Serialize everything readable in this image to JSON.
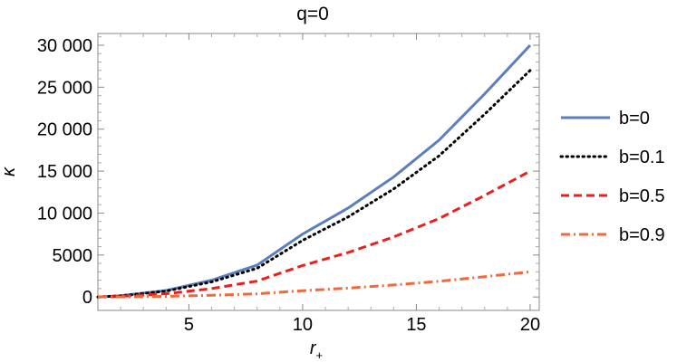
{
  "chart_data": {
    "type": "line",
    "title": "q=0",
    "xlabel": "r",
    "xlabel_subscript": "+",
    "ylabel": "κ",
    "xlim": [
      1,
      20.4
    ],
    "ylim": [
      -1600,
      31400
    ],
    "xticks": [
      5,
      10,
      15,
      20
    ],
    "xtick_labels": [
      "5",
      "10",
      "15",
      "20"
    ],
    "yticks": [
      0,
      5000,
      10000,
      15000,
      20000,
      25000,
      30000
    ],
    "ytick_labels": [
      "0",
      "5000",
      "10 000",
      "15 000",
      "20 000",
      "25 000",
      "30 000"
    ],
    "grid": false,
    "legend_position": "right",
    "series": [
      {
        "name": "b=0",
        "color": "#5b7fba",
        "style": "solid",
        "x": [
          1,
          2,
          4,
          6,
          8,
          10,
          12,
          14,
          16,
          18,
          20
        ],
        "y": [
          0,
          150,
          780,
          2000,
          3800,
          7500,
          10600,
          14300,
          18700,
          24200,
          30000
        ]
      },
      {
        "name": "b=0.1",
        "color": "#000000",
        "style": "dotted",
        "x": [
          1,
          2,
          4,
          6,
          8,
          10,
          12,
          14,
          16,
          18,
          20
        ],
        "y": [
          0,
          135,
          700,
          1800,
          3420,
          6750,
          9540,
          12870,
          16830,
          21780,
          27000
        ]
      },
      {
        "name": "b=0.5",
        "color": "#e8211c",
        "style": "dashed",
        "x": [
          1,
          2,
          4,
          6,
          8,
          10,
          12,
          14,
          16,
          18,
          20
        ],
        "y": [
          0,
          75,
          390,
          1000,
          1900,
          3750,
          5300,
          7150,
          9350,
          12100,
          15000
        ]
      },
      {
        "name": "b=0.9",
        "color": "#ee6a3c",
        "style": "dashdot",
        "x": [
          1,
          2,
          4,
          6,
          8,
          10,
          12,
          14,
          16,
          18,
          20
        ],
        "y": [
          0,
          15,
          78,
          200,
          380,
          750,
          1060,
          1430,
          1870,
          2420,
          3000
        ]
      }
    ]
  }
}
